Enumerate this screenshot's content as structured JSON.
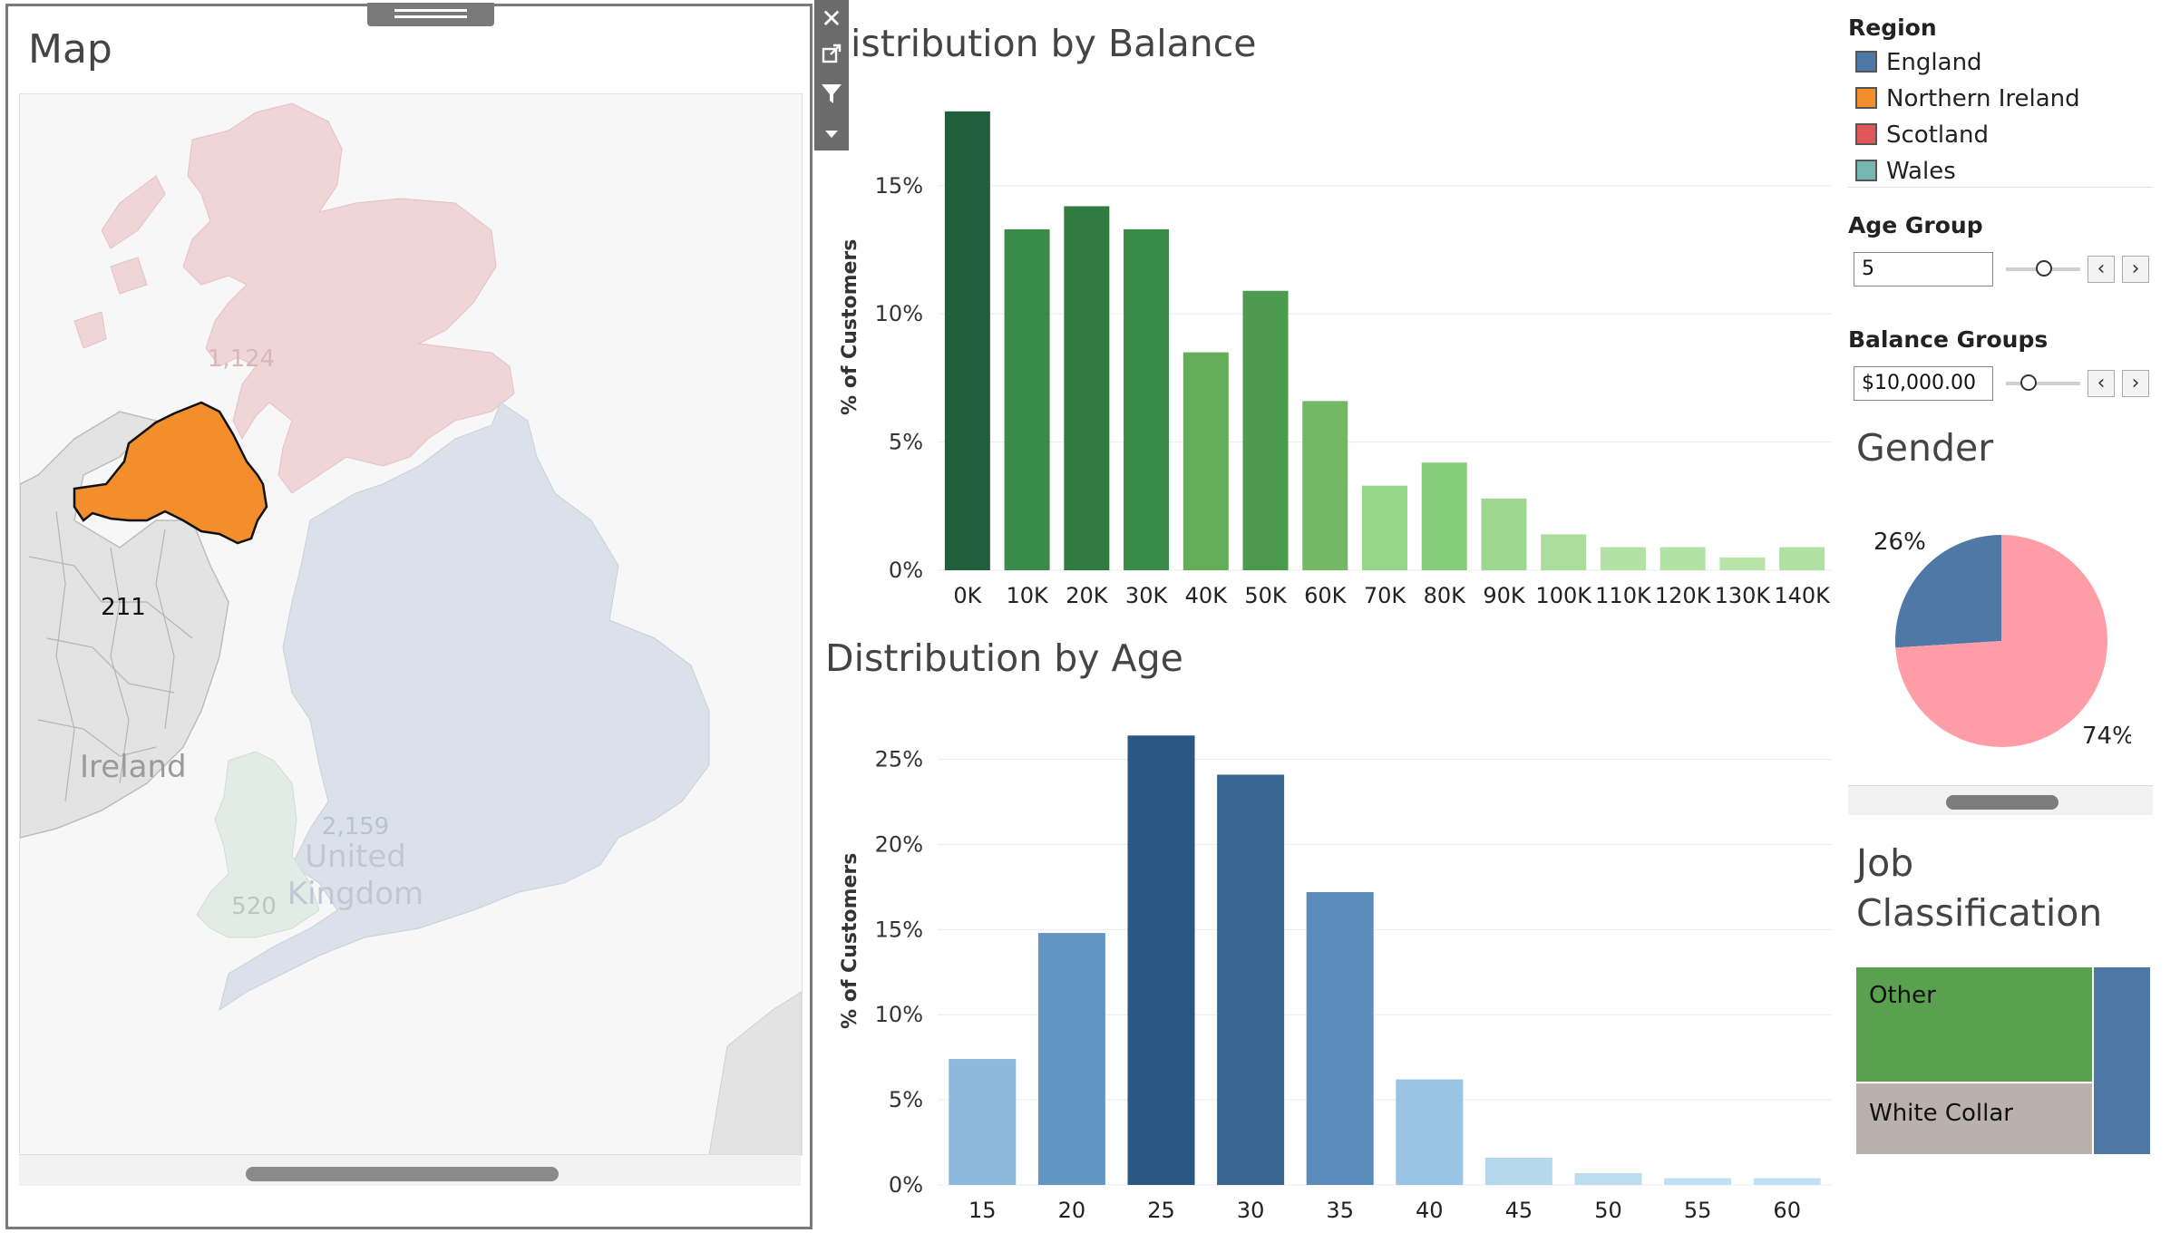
{
  "map": {
    "title": "Map",
    "regions": [
      {
        "name": "Scotland",
        "value": "1,124",
        "color": "#f0d5d6"
      },
      {
        "name": "England",
        "value": "2,159",
        "color": "#dbe1ea"
      },
      {
        "name": "Wales",
        "value": "520",
        "color": "#e1ece7"
      },
      {
        "name": "Northern Ireland",
        "value": "211",
        "color": "#f28e2b"
      }
    ],
    "country_labels": [
      "Ireland",
      "United",
      "Kingdom"
    ]
  },
  "toolbar": {
    "icons": [
      "close-icon",
      "popout-icon",
      "filter-icon",
      "dropdown-icon"
    ]
  },
  "balance_chart": {
    "title": "istribution by Balance",
    "ylabel": "% of Customers",
    "yticks": [
      "15%",
      "10%",
      "5%",
      "0%"
    ]
  },
  "age_chart": {
    "title": "Distribution by Age",
    "ylabel": "% of Customers",
    "yticks": [
      "25%",
      "20%",
      "15%",
      "10%",
      "5%",
      "0%"
    ]
  },
  "chart_data": [
    {
      "type": "bar",
      "title": "istribution by Balance",
      "ylabel": "% of Customers",
      "xlabel": "",
      "categories": [
        "0K",
        "10K",
        "20K",
        "30K",
        "40K",
        "50K",
        "60K",
        "70K",
        "80K",
        "90K",
        "100K",
        "110K",
        "120K",
        "130K",
        "140K"
      ],
      "values": [
        17.9,
        13.3,
        14.2,
        13.3,
        8.5,
        10.9,
        6.6,
        3.3,
        4.2,
        2.8,
        1.4,
        0.9,
        0.9,
        0.5,
        0.9
      ],
      "ylim": [
        0,
        18
      ],
      "colors": [
        "#215e3b",
        "#3a8b4a",
        "#2f7b40",
        "#3a8b4a",
        "#64ac57",
        "#4b9a4e",
        "#74b866",
        "#96d68a",
        "#85cc7a",
        "#9ed890",
        "#aadd9b",
        "#b2e2a4",
        "#b2e2a4",
        "#b8e4aa",
        "#b0e0a2"
      ],
      "grid": true
    },
    {
      "type": "bar",
      "title": "Distribution by Age",
      "ylabel": "% of Customers",
      "xlabel": "",
      "categories": [
        "15",
        "20",
        "25",
        "30",
        "35",
        "40",
        "45",
        "50",
        "55",
        "60"
      ],
      "values": [
        7.4,
        14.8,
        26.4,
        24.1,
        17.2,
        6.2,
        1.6,
        0.7,
        0.4,
        0.4
      ],
      "ylim": [
        0,
        27
      ],
      "colors": [
        "#8cb8dc",
        "#6395c2",
        "#2b5882",
        "#396591",
        "#5b8cbc",
        "#9ac4e4",
        "#b6d8ef",
        "#bcdcf1",
        "#c2e0f3",
        "#c2e0f3"
      ],
      "grid": true
    },
    {
      "type": "pie",
      "title": "Gender",
      "slices": [
        {
          "label": "26%",
          "value": 26,
          "color": "#4e79a7"
        },
        {
          "label": "74%",
          "value": 74,
          "color": "#ff9da7"
        }
      ]
    }
  ],
  "legend": {
    "heading": "Region",
    "items": [
      {
        "label": "England",
        "color": "#4e79a7"
      },
      {
        "label": "Northern Ireland",
        "color": "#f28e2b"
      },
      {
        "label": "Scotland",
        "color": "#e15759"
      },
      {
        "label": "Wales",
        "color": "#76b7b2"
      }
    ]
  },
  "filters": {
    "age_group": {
      "label": "Age Group",
      "value": "5",
      "slider_fraction": 0.5
    },
    "balance_groups": {
      "label": "Balance Groups",
      "value": "$10,000.00",
      "slider_fraction": 0.3
    }
  },
  "gender": {
    "title": "Gender"
  },
  "job": {
    "title_line1": "Job",
    "title_line2": "Classification",
    "items": [
      {
        "label": "Other",
        "color": "#59a14f"
      },
      {
        "label": "White Collar",
        "color": "#bab0ac"
      },
      {
        "label": "",
        "color": "#4e79a7"
      }
    ]
  }
}
